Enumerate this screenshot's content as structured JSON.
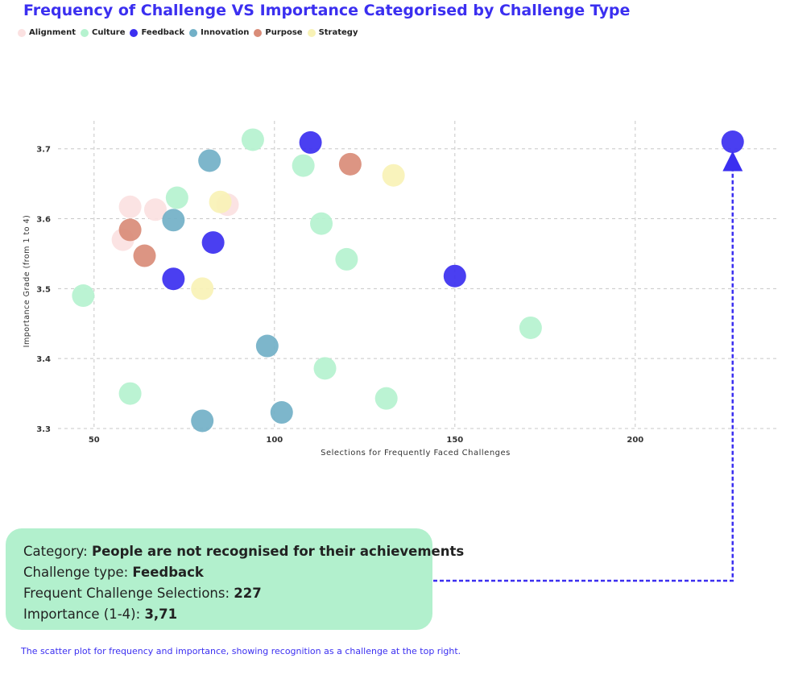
{
  "title": "Frequency of Challenge VS Importance Categorised by Challenge Type",
  "legend": [
    {
      "label": "Alignment",
      "color": "#fbe1e1"
    },
    {
      "label": "Culture",
      "color": "#b5f2cf"
    },
    {
      "label": "Feedback",
      "color": "#3b2ff0"
    },
    {
      "label": "Innovation",
      "color": "#72b0c7"
    },
    {
      "label": "Purpose",
      "color": "#d98c78"
    },
    {
      "label": "Strategy",
      "color": "#f8f2b6"
    }
  ],
  "chart_data": {
    "type": "scatter",
    "title": "Frequency of Challenge VS Importance Categorised by Challenge Type",
    "xlabel": "Selections for Frequently Faced Challenges",
    "ylabel": "Importance Grade (from 1 to 4)",
    "xlim": [
      40,
      240
    ],
    "ylim": [
      3.3,
      3.74
    ],
    "xticks": [
      50,
      100,
      150,
      200
    ],
    "yticks": [
      3.3,
      3.4,
      3.5,
      3.6,
      3.7
    ],
    "grid": true,
    "legend_position": "top-left",
    "series": [
      {
        "name": "Alignment",
        "color": "#fbe1e1",
        "points": [
          [
            58,
            3.57
          ],
          [
            60,
            3.617
          ],
          [
            67,
            3.613
          ],
          [
            87,
            3.62
          ]
        ]
      },
      {
        "name": "Culture",
        "color": "#b5f2cf",
        "points": [
          [
            47,
            3.49
          ],
          [
            60,
            3.35
          ],
          [
            73,
            3.63
          ],
          [
            94,
            3.713
          ],
          [
            108,
            3.676
          ],
          [
            113,
            3.593
          ],
          [
            114,
            3.386
          ],
          [
            120,
            3.542
          ],
          [
            131,
            3.343
          ],
          [
            171,
            3.444
          ]
        ]
      },
      {
        "name": "Feedback",
        "color": "#3b2ff0",
        "points": [
          [
            72,
            3.514
          ],
          [
            83,
            3.566
          ],
          [
            110,
            3.709
          ],
          [
            150,
            3.518
          ],
          [
            227,
            3.71
          ]
        ]
      },
      {
        "name": "Innovation",
        "color": "#72b0c7",
        "points": [
          [
            72,
            3.598
          ],
          [
            80,
            3.311
          ],
          [
            82,
            3.683
          ],
          [
            98,
            3.418
          ],
          [
            102,
            3.323
          ]
        ]
      },
      {
        "name": "Purpose",
        "color": "#d98c78",
        "points": [
          [
            60,
            3.584
          ],
          [
            64,
            3.547
          ],
          [
            121,
            3.678
          ]
        ]
      },
      {
        "name": "Strategy",
        "color": "#f8f2b6",
        "points": [
          [
            80,
            3.5
          ],
          [
            85,
            3.624
          ],
          [
            133,
            3.662
          ]
        ]
      }
    ]
  },
  "callout": {
    "category_label": "Category: ",
    "category_value": "People are not recognised for their achievements",
    "type_label": "Challenge type: ",
    "type_value": "Feedback",
    "selections_label": "Frequent Challenge Selections: ",
    "selections_value": "227",
    "importance_label": "Importance (1-4): ",
    "importance_value": "3,71"
  },
  "caption": "The scatter plot for frequency and importance, showing recognition as a challenge at the top right."
}
